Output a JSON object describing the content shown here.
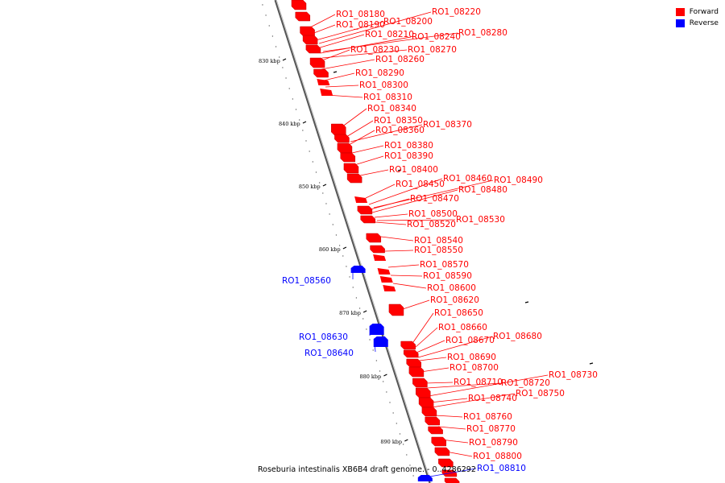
{
  "legend": {
    "forward_label": "Forward",
    "reverse_label": "Reverse",
    "forward_color": "#ff0000",
    "reverse_color": "#0000ff"
  },
  "caption": "Roseburia intestinalis XB6B4 draft genome. - 0..4286292",
  "ticks": [
    "830 kbp",
    "840 kbp",
    "850 kbp",
    "860 kbp",
    "870 kbp",
    "880 kbp",
    "890 kbp"
  ],
  "genes": [
    {
      "id": "RO1_08180",
      "strand": "forward"
    },
    {
      "id": "RO1_08190",
      "strand": "forward"
    },
    {
      "id": "RO1_08200",
      "strand": "forward"
    },
    {
      "id": "RO1_08210",
      "strand": "forward"
    },
    {
      "id": "RO1_08220",
      "strand": "forward"
    },
    {
      "id": "RO1_08230",
      "strand": "forward"
    },
    {
      "id": "RO1_08240",
      "strand": "forward"
    },
    {
      "id": "RO1_08260",
      "strand": "forward"
    },
    {
      "id": "RO1_08270",
      "strand": "forward"
    },
    {
      "id": "RO1_08280",
      "strand": "forward"
    },
    {
      "id": "RO1_08290",
      "strand": "forward"
    },
    {
      "id": "RO1_08300",
      "strand": "forward"
    },
    {
      "id": "RO1_08310",
      "strand": "forward"
    },
    {
      "id": "RO1_08340",
      "strand": "forward"
    },
    {
      "id": "RO1_08350",
      "strand": "forward"
    },
    {
      "id": "RO1_08360",
      "strand": "forward"
    },
    {
      "id": "RO1_08370",
      "strand": "forward"
    },
    {
      "id": "RO1_08380",
      "strand": "forward"
    },
    {
      "id": "RO1_08390",
      "strand": "forward"
    },
    {
      "id": "RO1_08400",
      "strand": "forward"
    },
    {
      "id": "RO1_08450",
      "strand": "forward"
    },
    {
      "id": "RO1_08460",
      "strand": "forward"
    },
    {
      "id": "RO1_08470",
      "strand": "forward"
    },
    {
      "id": "RO1_08480",
      "strand": "forward"
    },
    {
      "id": "RO1_08490",
      "strand": "forward"
    },
    {
      "id": "RO1_08500",
      "strand": "forward"
    },
    {
      "id": "RO1_08520",
      "strand": "forward"
    },
    {
      "id": "RO1_08530",
      "strand": "forward"
    },
    {
      "id": "RO1_08540",
      "strand": "forward"
    },
    {
      "id": "RO1_08550",
      "strand": "forward"
    },
    {
      "id": "RO1_08560",
      "strand": "reverse"
    },
    {
      "id": "RO1_08570",
      "strand": "forward"
    },
    {
      "id": "RO1_08590",
      "strand": "forward"
    },
    {
      "id": "RO1_08600",
      "strand": "forward"
    },
    {
      "id": "RO1_08620",
      "strand": "forward"
    },
    {
      "id": "RO1_08630",
      "strand": "reverse"
    },
    {
      "id": "RO1_08640",
      "strand": "reverse"
    },
    {
      "id": "RO1_08650",
      "strand": "forward"
    },
    {
      "id": "RO1_08660",
      "strand": "forward"
    },
    {
      "id": "RO1_08670",
      "strand": "forward"
    },
    {
      "id": "RO1_08680",
      "strand": "forward"
    },
    {
      "id": "RO1_08690",
      "strand": "forward"
    },
    {
      "id": "RO1_08700",
      "strand": "forward"
    },
    {
      "id": "RO1_08710",
      "strand": "forward"
    },
    {
      "id": "RO1_08720",
      "strand": "forward"
    },
    {
      "id": "RO1_08730",
      "strand": "forward"
    },
    {
      "id": "RO1_08740",
      "strand": "forward"
    },
    {
      "id": "RO1_08750",
      "strand": "forward"
    },
    {
      "id": "RO1_08760",
      "strand": "forward"
    },
    {
      "id": "RO1_08770",
      "strand": "forward"
    },
    {
      "id": "RO1_08790",
      "strand": "forward"
    },
    {
      "id": "RO1_08800",
      "strand": "forward"
    },
    {
      "id": "RO1_08810",
      "strand": "reverse"
    }
  ]
}
